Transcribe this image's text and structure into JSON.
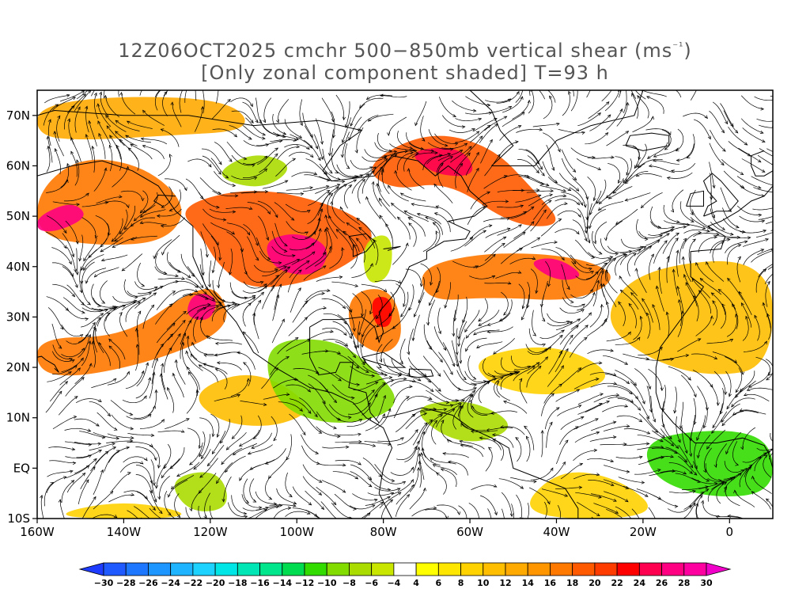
{
  "title": {
    "line1_prefix": "12Z06OCT2025 cmchr 500−850mb vertical shear (ms",
    "line1_sup": "⁻¹",
    "line1_suffix": ")",
    "line2": "[Only zonal component shaded] T=93 h"
  },
  "map": {
    "lon_range": [
      -160,
      10
    ],
    "lat_range": [
      -10,
      75
    ],
    "lat_ticks": [
      {
        "value": 70,
        "label": "70N"
      },
      {
        "value": 60,
        "label": "60N"
      },
      {
        "value": 50,
        "label": "50N"
      },
      {
        "value": 40,
        "label": "40N"
      },
      {
        "value": 30,
        "label": "30N"
      },
      {
        "value": 20,
        "label": "20N"
      },
      {
        "value": 10,
        "label": "10N"
      },
      {
        "value": 0,
        "label": "EQ"
      },
      {
        "value": -10,
        "label": "10S"
      }
    ],
    "lon_ticks": [
      {
        "value": -160,
        "label": "160W"
      },
      {
        "value": -140,
        "label": "140W"
      },
      {
        "value": -120,
        "label": "120W"
      },
      {
        "value": -100,
        "label": "100W"
      },
      {
        "value": -80,
        "label": "80W"
      },
      {
        "value": -60,
        "label": "60W"
      },
      {
        "value": -40,
        "label": "40W"
      },
      {
        "value": -20,
        "label": "20W"
      },
      {
        "value": 0,
        "label": "0"
      }
    ]
  },
  "colorbar": {
    "levels": [
      -30,
      -28,
      -26,
      -24,
      -22,
      -20,
      -18,
      -16,
      -14,
      -12,
      -10,
      -8,
      -6,
      -4,
      4,
      6,
      8,
      10,
      12,
      14,
      16,
      18,
      20,
      22,
      24,
      26,
      28,
      30
    ],
    "labels": [
      "−30",
      "−28",
      "−26",
      "−24",
      "−22",
      "−20",
      "−18",
      "−16",
      "−14",
      "−12",
      "−10",
      "−8",
      "−6",
      "−4",
      "4",
      "6",
      "8",
      "10",
      "12",
      "14",
      "16",
      "18",
      "20",
      "22",
      "24",
      "26",
      "28",
      "30"
    ],
    "colors": [
      "#1e3cff",
      "#1e5aff",
      "#1e78ff",
      "#1e96ff",
      "#1eb4ff",
      "#1ed2ff",
      "#00e6e6",
      "#00e6b4",
      "#00e68c",
      "#00dc50",
      "#32dc00",
      "#82dc00",
      "#aadc00",
      "#c8e600",
      "#ffffff",
      "#ffff00",
      "#ffe600",
      "#ffd200",
      "#ffbe00",
      "#ffaa00",
      "#ff9600",
      "#ff7800",
      "#ff5a00",
      "#ff3c00",
      "#ff0000",
      "#ff0050",
      "#ff0082",
      "#ff00a0",
      "#f000c8"
    ]
  },
  "shading_regions": [
    {
      "kind": "positive",
      "level": 16,
      "points": [
        [
          -160,
          55
        ],
        [
          -150,
          62
        ],
        [
          -135,
          60
        ],
        [
          -125,
          52
        ],
        [
          -130,
          45
        ],
        [
          -145,
          44
        ],
        [
          -160,
          46
        ]
      ]
    },
    {
      "kind": "positive",
      "level": 26,
      "points": [
        [
          -160,
          50
        ],
        [
          -152,
          53
        ],
        [
          -148,
          50
        ],
        [
          -155,
          47
        ],
        [
          -160,
          47
        ]
      ]
    },
    {
      "kind": "positive",
      "level": 12,
      "points": [
        [
          -160,
          72
        ],
        [
          -140,
          74
        ],
        [
          -115,
          73
        ],
        [
          -110,
          67
        ],
        [
          -130,
          66
        ],
        [
          -150,
          65
        ],
        [
          -160,
          66
        ]
      ]
    },
    {
      "kind": "positive",
      "level": 18,
      "points": [
        [
          -128,
          52
        ],
        [
          -110,
          56
        ],
        [
          -90,
          52
        ],
        [
          -80,
          46
        ],
        [
          -92,
          38
        ],
        [
          -110,
          35
        ],
        [
          -118,
          40
        ],
        [
          -122,
          46
        ]
      ]
    },
    {
      "kind": "positive",
      "level": 26,
      "points": [
        [
          -108,
          45
        ],
        [
          -100,
          47
        ],
        [
          -92,
          44
        ],
        [
          -95,
          38
        ],
        [
          -105,
          39
        ]
      ]
    },
    {
      "kind": "positive",
      "level": 16,
      "points": [
        [
          -160,
          26
        ],
        [
          -140,
          26
        ],
        [
          -125,
          35
        ],
        [
          -118,
          36
        ],
        [
          -115,
          28
        ],
        [
          -130,
          22
        ],
        [
          -150,
          18
        ],
        [
          -160,
          19
        ]
      ]
    },
    {
      "kind": "positive",
      "level": 26,
      "points": [
        [
          -124,
          35
        ],
        [
          -118,
          34
        ],
        [
          -120,
          29
        ],
        [
          -126,
          30
        ]
      ]
    },
    {
      "kind": "positive",
      "level": 18,
      "points": [
        [
          -85,
          60
        ],
        [
          -70,
          67
        ],
        [
          -55,
          64
        ],
        [
          -45,
          55
        ],
        [
          -38,
          48
        ],
        [
          -50,
          48
        ],
        [
          -65,
          57
        ],
        [
          -78,
          55
        ]
      ]
    },
    {
      "kind": "positive",
      "level": 24,
      "points": [
        [
          -75,
          63
        ],
        [
          -62,
          64
        ],
        [
          -58,
          58
        ],
        [
          -68,
          58
        ]
      ]
    },
    {
      "kind": "positive",
      "level": 16,
      "points": [
        [
          -72,
          40
        ],
        [
          -55,
          43
        ],
        [
          -35,
          42
        ],
        [
          -25,
          38
        ],
        [
          -35,
          33
        ],
        [
          -55,
          34
        ],
        [
          -70,
          33
        ]
      ]
    },
    {
      "kind": "positive",
      "level": 26,
      "points": [
        [
          -47,
          41
        ],
        [
          -40,
          42
        ],
        [
          -33,
          38
        ],
        [
          -40,
          37
        ]
      ]
    },
    {
      "kind": "positive",
      "level": 16,
      "points": [
        [
          -88,
          35
        ],
        [
          -78,
          36
        ],
        [
          -75,
          26
        ],
        [
          -80,
          22
        ],
        [
          -88,
          26
        ]
      ]
    },
    {
      "kind": "positive",
      "level": 22,
      "points": [
        [
          -83,
          34
        ],
        [
          -78,
          34
        ],
        [
          -78,
          28
        ],
        [
          -82,
          28
        ]
      ]
    },
    {
      "kind": "positive",
      "level": 10,
      "points": [
        [
          -20,
          40
        ],
        [
          10,
          42
        ],
        [
          10,
          20
        ],
        [
          -5,
          18
        ],
        [
          -20,
          22
        ],
        [
          -30,
          30
        ]
      ]
    },
    {
      "kind": "positive",
      "level": 8,
      "points": [
        [
          -50,
          -10
        ],
        [
          -40,
          0
        ],
        [
          -25,
          -2
        ],
        [
          -15,
          -10
        ]
      ]
    },
    {
      "kind": "positive",
      "level": 8,
      "points": [
        [
          -160,
          -10
        ],
        [
          -140,
          -6
        ],
        [
          -120,
          -10
        ]
      ]
    },
    {
      "kind": "positive",
      "level": 10,
      "points": [
        [
          -125,
          15
        ],
        [
          -110,
          20
        ],
        [
          -95,
          12
        ],
        [
          -105,
          8
        ],
        [
          -118,
          9
        ]
      ]
    },
    {
      "kind": "positive",
      "level": 8,
      "points": [
        [
          -60,
          22
        ],
        [
          -40,
          25
        ],
        [
          -25,
          18
        ],
        [
          -40,
          14
        ],
        [
          -55,
          16
        ]
      ]
    },
    {
      "kind": "negative",
      "level": -10,
      "points": [
        [
          -108,
          25
        ],
        [
          -92,
          26
        ],
        [
          -82,
          20
        ],
        [
          -75,
          12
        ],
        [
          -90,
          8
        ],
        [
          -105,
          12
        ]
      ]
    },
    {
      "kind": "negative",
      "level": -12,
      "points": [
        [
          -20,
          6
        ],
        [
          0,
          8
        ],
        [
          10,
          5
        ],
        [
          10,
          -5
        ],
        [
          -5,
          -6
        ],
        [
          -18,
          -2
        ]
      ]
    },
    {
      "kind": "negative",
      "level": -8,
      "points": [
        [
          -120,
          58
        ],
        [
          -110,
          63
        ],
        [
          -100,
          60
        ],
        [
          -108,
          55
        ]
      ]
    },
    {
      "kind": "negative",
      "level": -8,
      "points": [
        [
          -75,
          12
        ],
        [
          -60,
          14
        ],
        [
          -48,
          8
        ],
        [
          -62,
          4
        ]
      ]
    },
    {
      "kind": "negative",
      "level": -8,
      "points": [
        [
          -130,
          -2
        ],
        [
          -118,
          0
        ],
        [
          -115,
          -8
        ],
        [
          -125,
          -9
        ]
      ]
    },
    {
      "kind": "negative",
      "level": -6,
      "points": [
        [
          -85,
          45
        ],
        [
          -78,
          47
        ],
        [
          -78,
          38
        ],
        [
          -84,
          36
        ]
      ]
    }
  ]
}
